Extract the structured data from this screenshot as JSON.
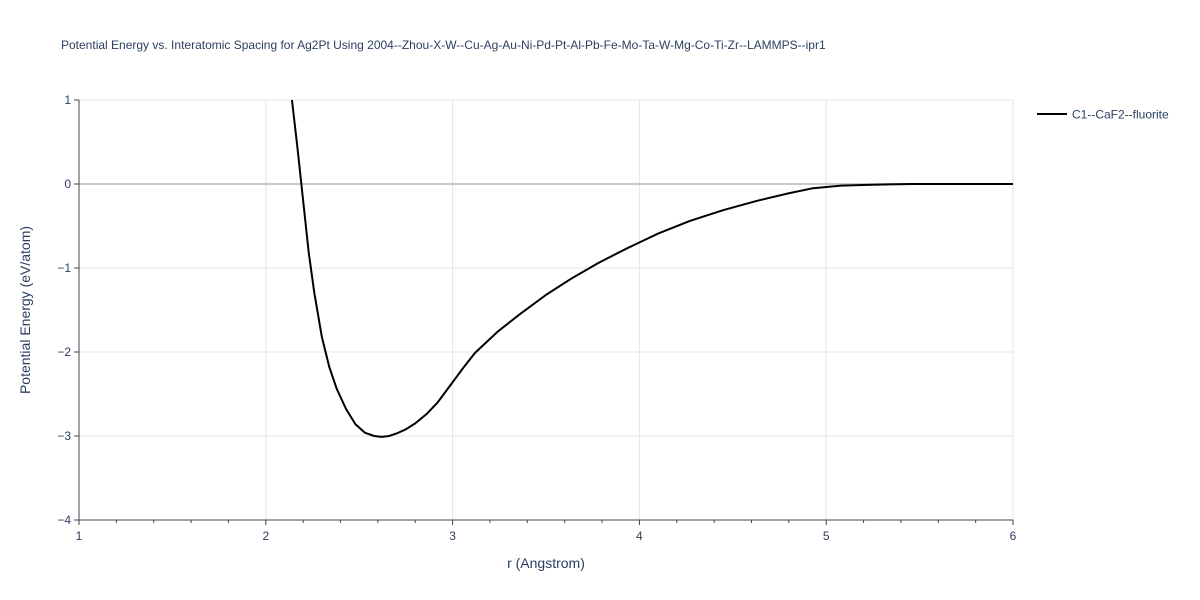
{
  "chart_data": {
    "type": "line",
    "title": "Potential Energy vs. Interatomic Spacing for Ag2Pt Using 2004--Zhou-X-W--Cu-Ag-Au-Ni-Pd-Pt-Al-Pb-Fe-Mo-Ta-W-Mg-Co-Ti-Zr--LAMMPS--ipr1",
    "xlabel": "r (Angstrom)",
    "ylabel": "Potential Energy (eV/atom)",
    "xlim": [
      1,
      6
    ],
    "ylim": [
      -4,
      1
    ],
    "x_ticks": [
      1,
      2,
      3,
      4,
      5,
      6
    ],
    "x_tick_labels": [
      "1",
      "2",
      "3",
      "4",
      "5",
      "6"
    ],
    "y_ticks": [
      1,
      0,
      -1,
      -2,
      -3,
      -4
    ],
    "y_tick_labels": [
      "1",
      "0",
      "−1",
      "−2",
      "−3",
      "−4"
    ],
    "grid": true,
    "legend_position": "top-right",
    "colors": {
      "series": "#000000",
      "grid": "#e5e5e5",
      "zeroline": "#c8c8c8",
      "text": "#2a3f5f"
    },
    "series": [
      {
        "name": "C1--CaF2--fluorite",
        "x": [
          2.14,
          2.17,
          2.2,
          2.23,
          2.26,
          2.3,
          2.34,
          2.38,
          2.43,
          2.48,
          2.53,
          2.58,
          2.62,
          2.66,
          2.7,
          2.75,
          2.8,
          2.86,
          2.92,
          3.0,
          3.06,
          3.12,
          3.24,
          3.36,
          3.5,
          3.64,
          3.78,
          3.93,
          4.1,
          4.27,
          4.45,
          4.63,
          4.8,
          4.93,
          5.08,
          5.22,
          5.46,
          5.7,
          6.0
        ],
        "y": [
          1.0,
          0.42,
          -0.2,
          -0.82,
          -1.3,
          -1.82,
          -2.18,
          -2.44,
          -2.68,
          -2.86,
          -2.96,
          -3.0,
          -3.01,
          -3.0,
          -2.97,
          -2.92,
          -2.85,
          -2.74,
          -2.6,
          -2.36,
          -2.18,
          -2.01,
          -1.76,
          -1.55,
          -1.32,
          -1.12,
          -0.94,
          -0.77,
          -0.59,
          -0.44,
          -0.31,
          -0.2,
          -0.11,
          -0.05,
          -0.02,
          -0.01,
          0.0,
          0.0,
          0.0
        ]
      }
    ]
  }
}
